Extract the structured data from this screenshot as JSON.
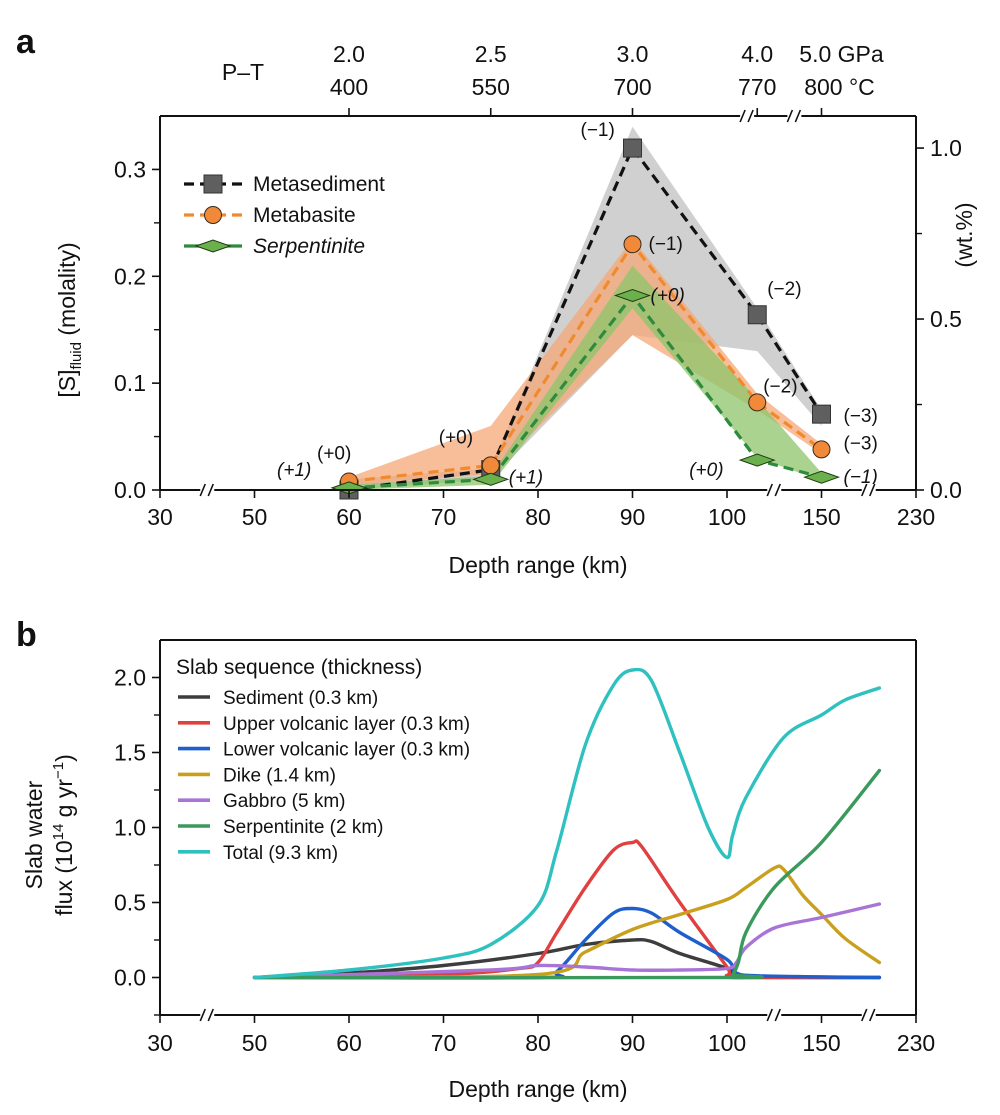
{
  "chart_data": [
    {
      "panel": "a",
      "type": "line",
      "xlabel": "Depth range (km)",
      "ylabel_main": "[S]",
      "ylabel_sub": "fluid",
      "ylabel_unit": " (molality)",
      "ylabel_right": "(wt.%)",
      "x_ticks": [
        30,
        50,
        60,
        70,
        80,
        90,
        100,
        150,
        230
      ],
      "x_tick_labels": [
        "30",
        "50",
        "60",
        "70",
        "80",
        "90",
        "100",
        "150",
        "230"
      ],
      "x_breaks": [
        [
          30,
          50
        ],
        [
          100,
          150
        ],
        [
          150,
          230
        ]
      ],
      "ylim": [
        0,
        0.35
      ],
      "y_ticks": [
        0.0,
        0.1,
        0.2,
        0.3
      ],
      "y_tick_labels": [
        "0.0",
        "0.1",
        "0.2",
        "0.3"
      ],
      "y_minor_ticks": [
        0.05,
        0.15,
        0.25
      ],
      "y_right_ticks": [
        0.0,
        0.5,
        1.0
      ],
      "y_right_tick_labels": [
        "0.0",
        "0.5",
        "1.0"
      ],
      "y_right_minor_ticks": [
        0.25,
        0.75
      ],
      "y_right_per_left": 3.125,
      "top_axis": {
        "label": "P–T",
        "ticks": [
          {
            "depth": 60,
            "pressure": "2.0",
            "temperature": "400"
          },
          {
            "depth": 75,
            "pressure": "2.5",
            "temperature": "550"
          },
          {
            "depth": 90,
            "pressure": "3.0",
            "temperature": "700"
          },
          {
            "depth": 116,
            "pressure": "4.0",
            "temperature": "770"
          },
          {
            "depth": 150,
            "pressure": "5.0 GPa",
            "temperature": "800 °C"
          }
        ]
      },
      "legend_position": "top-left",
      "series": [
        {
          "name": "Metasediment",
          "italic": false,
          "marker": "square",
          "line_color": "#111111",
          "marker_color": "#5f5f5f",
          "band_color": "#c8c8c8",
          "x": [
            60,
            75,
            90,
            116,
            150
          ],
          "y": [
            0.0,
            0.019,
            0.32,
            0.164,
            0.071
          ],
          "band_low": [
            0.0,
            0.01,
            0.145,
            0.13,
            0.06
          ],
          "band_high": [
            0.01,
            0.02,
            0.34,
            0.17,
            0.075
          ],
          "labels": [
            "",
            "",
            "(−1)",
            "(−2)",
            "(−3)"
          ]
        },
        {
          "name": "Metabasite",
          "italic": false,
          "marker": "circle",
          "line_color": "#f08a2c",
          "marker_color": "#f08a3a",
          "band_color": "#f5a878",
          "x": [
            60,
            75,
            90,
            116,
            150
          ],
          "y": [
            0.008,
            0.023,
            0.23,
            0.082,
            0.038
          ],
          "band_low": [
            0.004,
            0.015,
            0.145,
            0.075,
            0.034
          ],
          "band_high": [
            0.012,
            0.06,
            0.235,
            0.09,
            0.043
          ],
          "labels": [
            "(+0)",
            "(+0)",
            "(−1)",
            "(−2)",
            "(−3)"
          ]
        },
        {
          "name": "Serpentinite",
          "italic": true,
          "marker": "diamond",
          "line_color": "#2e8b3e",
          "marker_color": "#6ab04c",
          "band_color": "#8cc46a",
          "x": [
            60,
            75,
            90,
            116,
            150
          ],
          "y": [
            0.002,
            0.01,
            0.182,
            0.028,
            0.012
          ],
          "band_low": [
            0.0,
            0.005,
            0.17,
            0.03,
            0.009
          ],
          "band_high": [
            0.005,
            0.013,
            0.21,
            0.085,
            0.016
          ],
          "labels": [
            "(+1)",
            "(+1)",
            "(+0)",
            "(+0)",
            "(−1)"
          ]
        }
      ]
    },
    {
      "panel": "b",
      "type": "line",
      "xlabel": "Depth range (km)",
      "ylabel_line1": "Slab water",
      "ylabel_line2": "flux (10",
      "ylabel_sup1": "14",
      "ylabel_mid": " g yr",
      "ylabel_sup2": "−1",
      "ylabel_end": ")",
      "x_ticks": [
        30,
        50,
        60,
        70,
        80,
        90,
        100,
        150,
        230
      ],
      "x_tick_labels": [
        "30",
        "50",
        "60",
        "70",
        "80",
        "90",
        "100",
        "150",
        "230"
      ],
      "x_breaks": [
        [
          30,
          50
        ],
        [
          100,
          150
        ],
        [
          150,
          230
        ]
      ],
      "ylim": [
        -0.25,
        2.25
      ],
      "y_ticks": [
        0.0,
        0.5,
        1.0,
        1.5,
        2.0
      ],
      "y_tick_labels": [
        "0.0",
        "0.5",
        "1.0",
        "1.5",
        "2.0"
      ],
      "y_minor_ticks": [
        -0.25,
        0.25,
        0.75,
        1.25,
        1.75
      ],
      "legend_title": "Slab sequence (thickness)",
      "legend_position": "top-left",
      "series": [
        {
          "name": "Sediment (0.3 km)",
          "color": "#3d3d3d",
          "x": [
            50,
            60,
            70,
            80,
            85,
            90,
            92,
            95,
            100,
            102,
            105,
            150,
            199
          ],
          "y": [
            0,
            0.03,
            0.08,
            0.16,
            0.22,
            0.25,
            0.24,
            0.16,
            0.06,
            0.01,
            0,
            0,
            0
          ]
        },
        {
          "name": "Upper volcanic layer (0.3 km)",
          "color": "#e0403f",
          "x": [
            50,
            70,
            78,
            80,
            82,
            85,
            88,
            90,
            91,
            95,
            100,
            103,
            150,
            199
          ],
          "y": [
            0,
            0.02,
            0.06,
            0.1,
            0.3,
            0.6,
            0.85,
            0.9,
            0.87,
            0.5,
            0.07,
            0.01,
            0,
            0
          ]
        },
        {
          "name": "Lower volcanic layer (0.3 km)",
          "color": "#1f5fcc",
          "x": [
            50,
            80,
            82,
            85,
            88,
            90,
            92,
            95,
            100,
            105,
            120,
            199
          ],
          "y": [
            0,
            0,
            0.04,
            0.25,
            0.43,
            0.46,
            0.43,
            0.3,
            0.12,
            0.03,
            0.01,
            0
          ]
        },
        {
          "name": "Dike (1.4 km)",
          "color": "#c9a01e",
          "x": [
            50,
            80,
            85,
            90,
            95,
            100,
            110,
            125,
            130,
            140,
            150,
            170,
            199
          ],
          "y": [
            0,
            0.02,
            0.17,
            0.32,
            0.42,
            0.52,
            0.6,
            0.73,
            0.72,
            0.55,
            0.42,
            0.26,
            0.1
          ]
        },
        {
          "name": "Gabbro (5 km)",
          "color": "#a875d6",
          "x": [
            50,
            75,
            80,
            85,
            90,
            95,
            100,
            105,
            110,
            125,
            150,
            199
          ],
          "y": [
            0,
            0.05,
            0.08,
            0.07,
            0.05,
            0.05,
            0.06,
            0.1,
            0.2,
            0.33,
            0.4,
            0.49
          ]
        },
        {
          "name": "Serpentinite (2 km)",
          "color": "#3a9a5c",
          "x": [
            50,
            100,
            103,
            106,
            110,
            125,
            150,
            199
          ],
          "y": [
            0,
            0,
            0.02,
            0.1,
            0.3,
            0.6,
            0.9,
            1.38
          ]
        },
        {
          "name": "Total (9.3 km)",
          "color": "#2fc0c0",
          "x": [
            50,
            60,
            70,
            75,
            80,
            82,
            85,
            88,
            90,
            92,
            95,
            98,
            100,
            103,
            110,
            130,
            150,
            170,
            199
          ],
          "y": [
            0,
            0.05,
            0.13,
            0.22,
            0.48,
            0.85,
            1.55,
            1.95,
            2.05,
            1.98,
            1.5,
            1.0,
            0.8,
            0.95,
            1.2,
            1.6,
            1.75,
            1.85,
            1.93
          ]
        }
      ]
    }
  ]
}
